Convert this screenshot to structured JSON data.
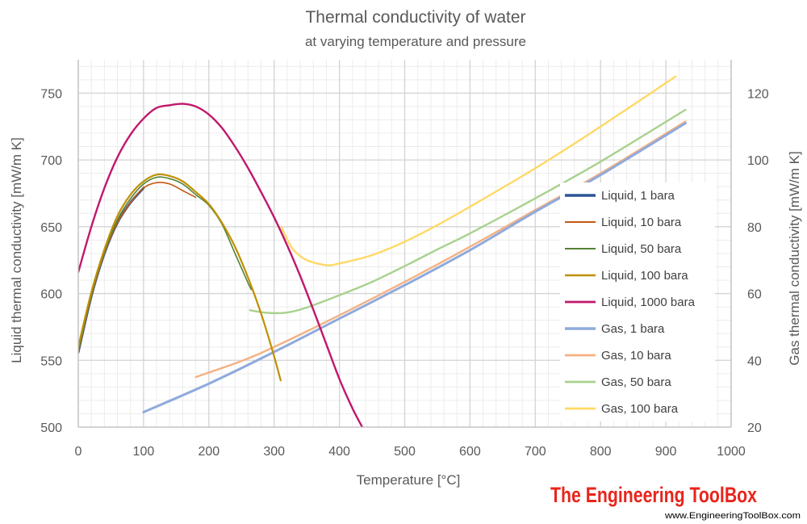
{
  "chart_data": {
    "type": "line",
    "title": "Thermal conductivity of water",
    "subtitle": "at varying temperature and pressure",
    "xlabel": "Temperature  [°C]",
    "ylabel_left": "Liquid thermal conductivity  [mW/m K]",
    "ylabel_right": "Gas thermal conductivity [mW/m K]",
    "xlim": [
      0,
      1000
    ],
    "ylim_left": [
      500,
      775
    ],
    "ylim_right": [
      20,
      130
    ],
    "x_ticks": [
      "0",
      "100",
      "200",
      "300",
      "400",
      "500",
      "600",
      "700",
      "800",
      "900",
      "1000"
    ],
    "y_ticks_left": [
      "500",
      "550",
      "600",
      "650",
      "700",
      "750"
    ],
    "y_ticks_right": [
      "20",
      "40",
      "60",
      "80",
      "100",
      "120"
    ],
    "grid": true,
    "legend_position": "right",
    "series": [
      {
        "name": "Liquid, 1 bara",
        "axis": "left",
        "color": "#2f5597",
        "width": 3,
        "x": [
          0,
          20,
          40,
          60,
          80,
          100
        ],
        "y": [
          556,
          598,
          630,
          653,
          668,
          679
        ]
      },
      {
        "name": "Liquid, 10 bara",
        "axis": "left",
        "color": "#c55a11",
        "width": 1.6,
        "x": [
          0,
          20,
          40,
          60,
          80,
          100,
          120,
          140,
          160,
          180
        ],
        "y": [
          556,
          598,
          630,
          653,
          668,
          679,
          683,
          682,
          677,
          672
        ]
      },
      {
        "name": "Liquid, 50 bara",
        "axis": "left",
        "color": "#548235",
        "width": 1.6,
        "x": [
          0,
          20,
          40,
          60,
          80,
          100,
          120,
          140,
          160,
          180,
          200,
          220,
          240,
          260,
          265
        ],
        "y": [
          557,
          599,
          631,
          655,
          671,
          682,
          687,
          686,
          682,
          674,
          666,
          652,
          630,
          608,
          603
        ]
      },
      {
        "name": "Liquid, 100 bara",
        "axis": "left",
        "color": "#bf9000",
        "width": 2.2,
        "x": [
          0,
          20,
          40,
          60,
          80,
          100,
          120,
          140,
          160,
          180,
          200,
          220,
          240,
          260,
          280,
          300,
          310
        ],
        "y": [
          560,
          601,
          633,
          658,
          674,
          684,
          689,
          688,
          684,
          676,
          667,
          653,
          635,
          612,
          585,
          553,
          535
        ]
      },
      {
        "name": "Liquid, 1000 bara",
        "axis": "left",
        "color": "#c0186d",
        "width": 2.4,
        "x": [
          0,
          20,
          40,
          60,
          80,
          100,
          120,
          140,
          160,
          180,
          200,
          220,
          240,
          260,
          280,
          300,
          320,
          340,
          360,
          380,
          400,
          420,
          435
        ],
        "y": [
          616,
          650,
          679,
          702,
          719,
          731,
          739,
          741,
          742,
          740,
          734,
          724,
          710,
          694,
          676,
          657,
          636,
          613,
          588,
          562,
          536,
          514,
          500
        ]
      },
      {
        "name": "Gas, 1 bara",
        "axis": "right",
        "color": "#8faadc",
        "width": 3,
        "x": [
          100,
          200,
          300,
          400,
          500,
          600,
          700,
          800,
          930
        ],
        "y": [
          24.5,
          33,
          42.5,
          52.5,
          62.5,
          73,
          84.5,
          95.5,
          111
        ]
      },
      {
        "name": "Gas, 10 bara",
        "axis": "right",
        "color": "#f4b183",
        "width": 2.4,
        "x": [
          180,
          250,
          300,
          400,
          500,
          600,
          700,
          800,
          930
        ],
        "y": [
          35,
          39.8,
          44,
          53.5,
          63.5,
          74,
          85,
          96,
          111.5
        ]
      },
      {
        "name": "Gas, 50 bara",
        "axis": "right",
        "color": "#a9d18e",
        "width": 2.4,
        "x": [
          263,
          290,
          320,
          350,
          400,
          450,
          500,
          550,
          600,
          700,
          800,
          930
        ],
        "y": [
          55,
          54.2,
          54.3,
          55.8,
          59.5,
          63.5,
          68.2,
          73.2,
          78,
          88.5,
          99.5,
          115
        ]
      },
      {
        "name": "Gas, 100 bara",
        "axis": "right",
        "color": "#ffd966",
        "width": 2.4,
        "x": [
          311,
          318,
          330,
          350,
          380,
          400,
          450,
          500,
          550,
          600,
          700,
          800,
          915
        ],
        "y": [
          80,
          77,
          73,
          70,
          68.5,
          69,
          71.5,
          75.5,
          80.5,
          86,
          97.5,
          110,
          125
        ]
      }
    ]
  },
  "branding": {
    "logo_text": "The Engineering ToolBox",
    "url": "www.EngineeringToolBox.com"
  }
}
